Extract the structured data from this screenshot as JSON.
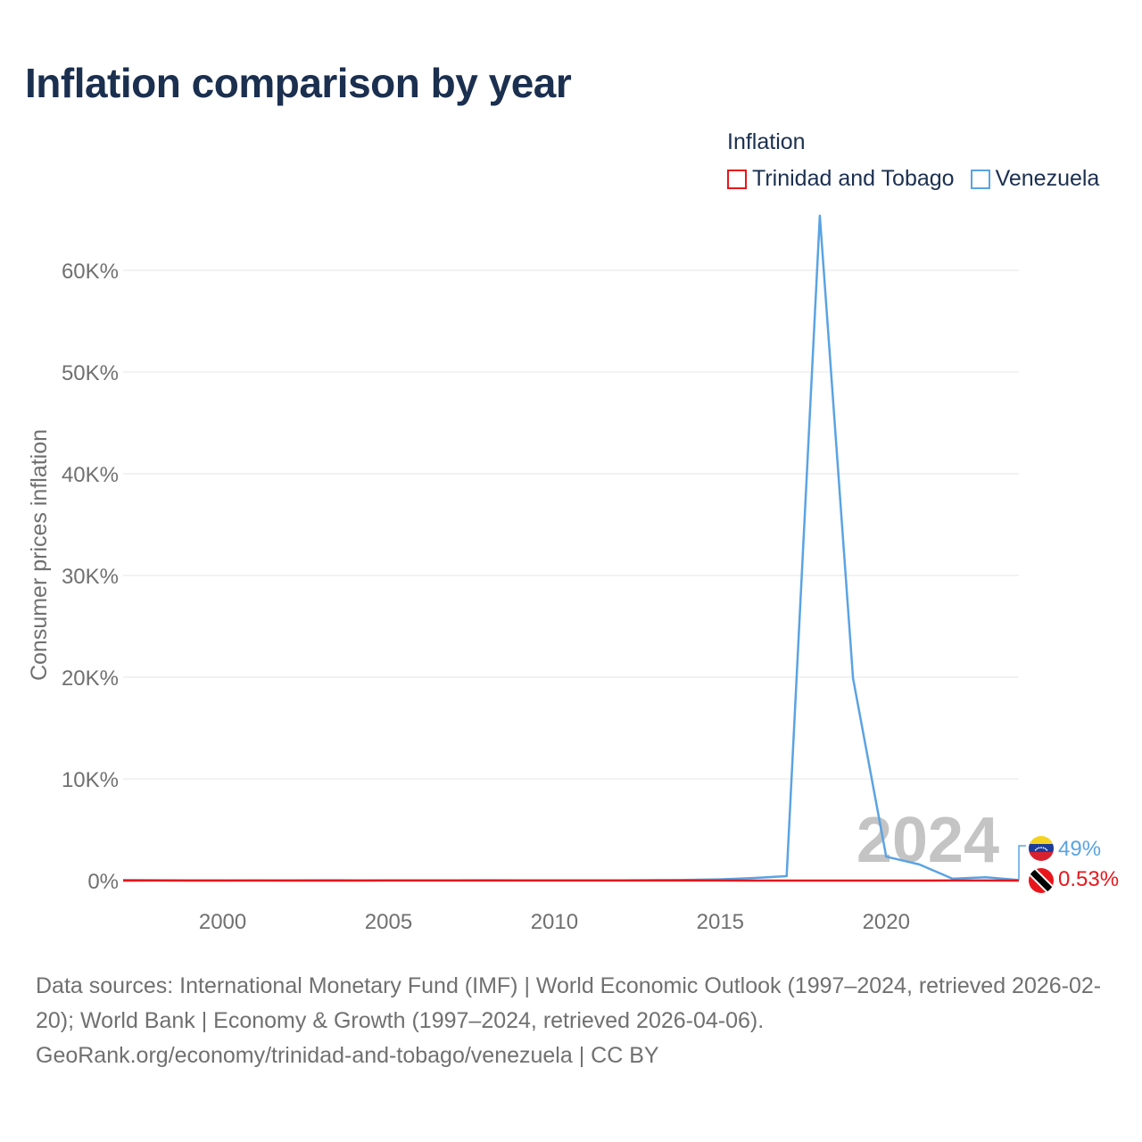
{
  "title": "Inflation comparison by year",
  "legend": {
    "title": "Inflation",
    "items": [
      {
        "name": "Trinidad and Tobago",
        "color": "#e8161b"
      },
      {
        "name": "Venezuela",
        "color": "#5aa3e3"
      }
    ]
  },
  "chart_data": {
    "type": "line",
    "title": "Inflation comparison by year",
    "xlabel": "",
    "ylabel": "Consumer prices inflation",
    "xlim": [
      1997,
      2024
    ],
    "ylim": [
      0,
      65000
    ],
    "x_ticks": [
      2000,
      2005,
      2010,
      2015,
      2020
    ],
    "y_ticks": [
      0,
      10000,
      20000,
      30000,
      40000,
      50000,
      60000
    ],
    "y_tick_labels": [
      "0%",
      "10K%",
      "20K%",
      "30K%",
      "40K%",
      "50K%",
      "60K%"
    ],
    "grid": true,
    "x": [
      1997,
      1998,
      1999,
      2000,
      2001,
      2002,
      2003,
      2004,
      2005,
      2006,
      2007,
      2008,
      2009,
      2010,
      2011,
      2012,
      2013,
      2014,
      2015,
      2016,
      2017,
      2018,
      2019,
      2020,
      2021,
      2022,
      2023,
      2024
    ],
    "series": [
      {
        "name": "Trinidad and Tobago",
        "color": "#e8161b",
        "values": [
          3.6,
          5.6,
          3.4,
          3.6,
          5.5,
          4.2,
          3.8,
          3.7,
          6.9,
          8.3,
          7.9,
          12.0,
          7.0,
          10.5,
          5.1,
          9.3,
          5.2,
          5.7,
          4.7,
          3.1,
          1.9,
          1.0,
          1.0,
          0.6,
          2.1,
          5.8,
          4.6,
          0.53
        ]
      },
      {
        "name": "Venezuela",
        "color": "#5aa3e3",
        "values": [
          50,
          36,
          24,
          16,
          12,
          22,
          31,
          22,
          16,
          14,
          19,
          31,
          27,
          28,
          26,
          21,
          41,
          62,
          122,
          255,
          438,
          65374,
          19906,
          2355,
          1588,
          186,
          337,
          49
        ]
      }
    ],
    "end_year_label": "2024",
    "end_labels": [
      {
        "country": "Venezuela",
        "text": "49%",
        "color": "#5aa3e3"
      },
      {
        "country": "Trinidad and Tobago",
        "text": "0.53%",
        "color": "#e8161b"
      }
    ]
  },
  "footer": {
    "line1": "Data sources: International Monetary Fund (IMF) | World Economic Outlook (1997–2024, retrieved 2026-02-20); World Bank | Economy & Growth (1997–2024, retrieved 2026-04-06).",
    "line2": "GeoRank.org/economy/trinidad-and-tobago/venezuela | CC BY"
  }
}
